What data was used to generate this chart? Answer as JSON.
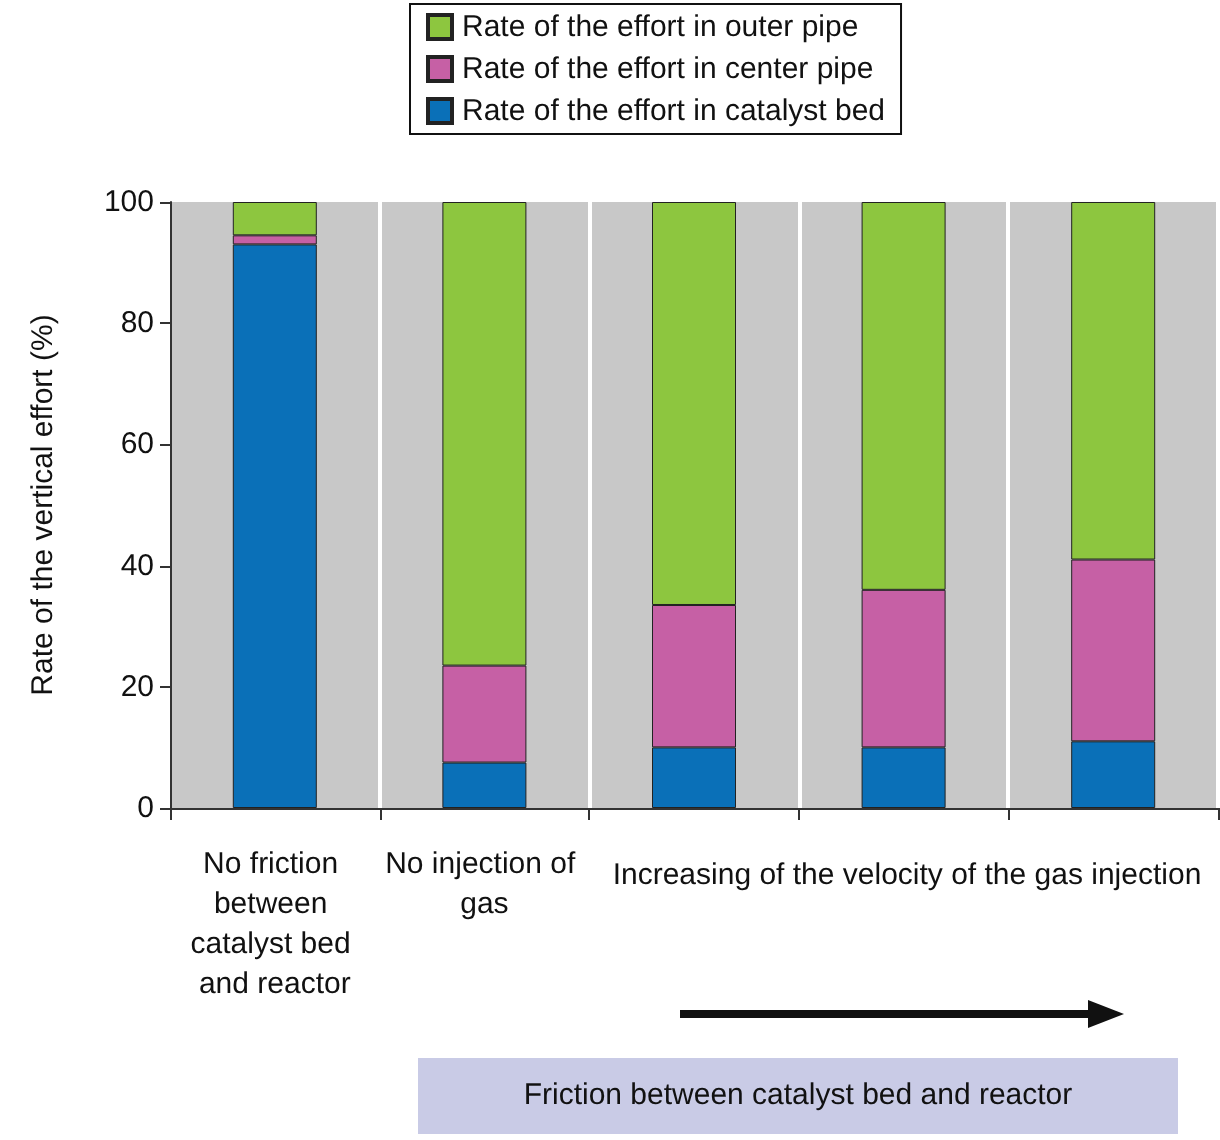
{
  "chart_data": {
    "type": "bar",
    "stacked": true,
    "ylabel": "Rate of the vertical effort (%)",
    "categories": [
      "No friction between catalyst bed and reactor",
      "No injection of gas",
      null,
      null,
      null
    ],
    "series": [
      {
        "name": "Rate of the effort in catalyst bed",
        "color": "#0a70b8",
        "values": [
          93,
          7.5,
          10,
          10,
          11
        ]
      },
      {
        "name": "Rate of the effort in center pipe",
        "color": "#c660a5",
        "values": [
          1.5,
          16,
          23.5,
          26,
          30
        ]
      },
      {
        "name": "Rate of the effort in outer pipe",
        "color": "#8dc63f",
        "values": [
          5.5,
          76.5,
          66.5,
          64,
          59
        ]
      }
    ],
    "ylim": [
      0,
      100
    ],
    "yticks": [
      0,
      20,
      40,
      60,
      80,
      100
    ],
    "grid": "x",
    "legend": "top",
    "annotations": [
      "Increasing of the velocity of the gas injection",
      "Friction between catalyst bed and reactor"
    ]
  }
}
